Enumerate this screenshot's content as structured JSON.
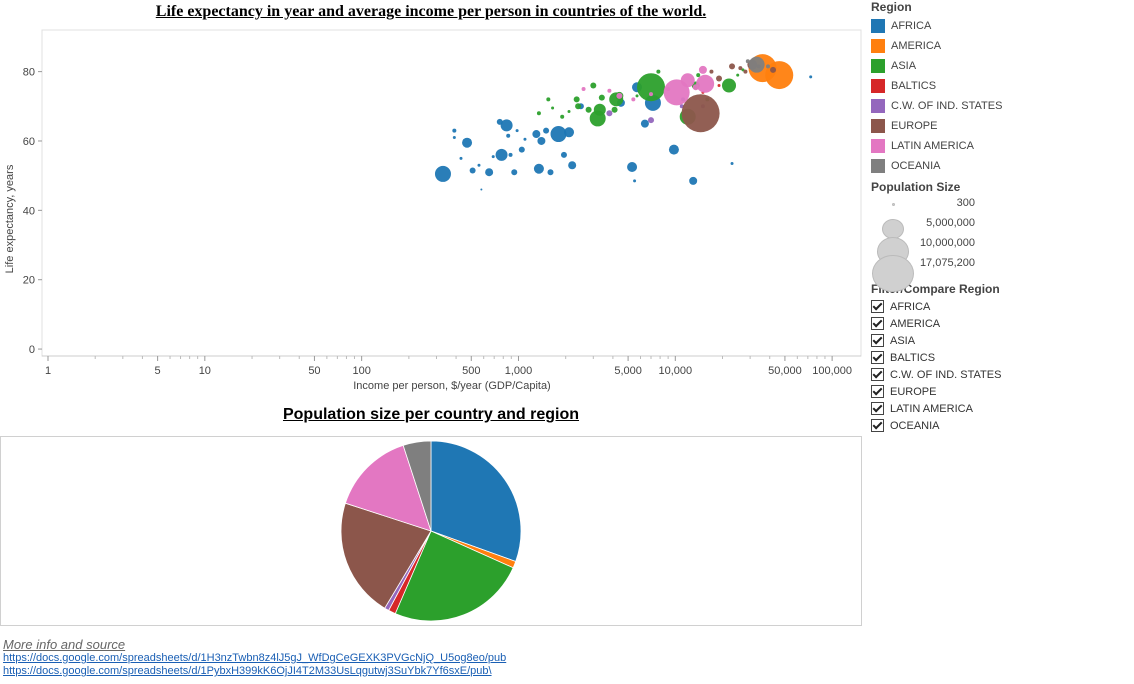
{
  "titles": {
    "scatter": "Life expectancy in year and average income per person in countries of the world.",
    "pie": "Population size per country and region"
  },
  "chart_data": [
    {
      "type": "scatter",
      "title": "Life expectancy in year and average income per person in countries of the world.",
      "xlabel": "Income per person, $/year (GDP/Capita)",
      "ylabel": "Life expectancy, years",
      "xscale": "log",
      "xlim": [
        1,
        130000
      ],
      "ylim": [
        -2,
        92
      ],
      "xticks": [
        1,
        5,
        10,
        50,
        100,
        500,
        1000,
        5000,
        10000,
        50000,
        100000
      ],
      "xtick_labels": [
        "1",
        "5",
        "10",
        "50",
        "100",
        "500",
        "1,000",
        "5,000",
        "10,000",
        "50,000",
        "100,000"
      ],
      "yticks": [
        0,
        20,
        40,
        60,
        80
      ],
      "grid": false,
      "legend_position": "right",
      "series": [
        {
          "name": "AFRICA",
          "color": "#1f77b4",
          "points": [
            [
              330,
              50.5,
              8
            ],
            [
              390,
              63,
              2
            ],
            [
              390,
              61,
              1.5
            ],
            [
              430,
              55,
              1.5
            ],
            [
              470,
              59.5,
              5
            ],
            [
              510,
              51.5,
              3
            ],
            [
              560,
              53,
              1.5
            ],
            [
              580,
              46,
              1
            ],
            [
              650,
              51,
              4
            ],
            [
              690,
              55.5,
              1.5
            ],
            [
              760,
              65.5,
              3
            ],
            [
              780,
              56,
              6
            ],
            [
              840,
              64.5,
              6
            ],
            [
              860,
              61.5,
              2
            ],
            [
              890,
              56,
              2
            ],
            [
              940,
              51,
              3
            ],
            [
              980,
              63,
              1.5
            ],
            [
              1050,
              57.5,
              3
            ],
            [
              1100,
              60.5,
              1.5
            ],
            [
              1300,
              62,
              4
            ],
            [
              1350,
              52,
              5
            ],
            [
              1400,
              60,
              4
            ],
            [
              1500,
              63,
              3
            ],
            [
              1600,
              51,
              3
            ],
            [
              1800,
              62,
              8
            ],
            [
              1950,
              56,
              3
            ],
            [
              2100,
              62.5,
              5
            ],
            [
              2200,
              53,
              4
            ],
            [
              2500,
              70,
              3
            ],
            [
              4500,
              71,
              4
            ],
            [
              5300,
              52.5,
              5
            ],
            [
              5500,
              48.5,
              1.5
            ],
            [
              5700,
              75.5,
              5
            ],
            [
              6400,
              65,
              4
            ],
            [
              7200,
              71,
              8
            ],
            [
              9800,
              57.5,
              5
            ],
            [
              11200,
              72,
              2
            ],
            [
              13000,
              48.5,
              4
            ],
            [
              23000,
              53.5,
              1.5
            ],
            [
              73000,
              78.5,
              1.5
            ]
          ]
        },
        {
          "name": "AMERICA",
          "color": "#ff7f0e",
          "points": [
            [
              36000,
              81,
              14
            ],
            [
              46000,
              79,
              14
            ]
          ]
        },
        {
          "name": "ASIA",
          "color": "#2ca02c",
          "points": [
            [
              1350,
              68,
              2
            ],
            [
              1550,
              72,
              2
            ],
            [
              1650,
              69.5,
              1.5
            ],
            [
              1900,
              67,
              2
            ],
            [
              2100,
              68.5,
              1.5
            ],
            [
              2350,
              72,
              3
            ],
            [
              2400,
              70,
              3
            ],
            [
              2800,
              69,
              3
            ],
            [
              3000,
              76,
              3
            ],
            [
              3200,
              66.5,
              8
            ],
            [
              3300,
              69,
              6
            ],
            [
              3400,
              72.5,
              3
            ],
            [
              4100,
              69,
              3
            ],
            [
              4200,
              72,
              7
            ],
            [
              4400,
              73,
              4
            ],
            [
              5700,
              73,
              1.5
            ],
            [
              7000,
              75.5,
              14
            ],
            [
              7800,
              80,
              2
            ],
            [
              12000,
              67,
              8
            ],
            [
              13500,
              76,
              4
            ],
            [
              14000,
              79,
              2
            ],
            [
              16000,
              72,
              2
            ],
            [
              22000,
              76,
              7
            ],
            [
              25000,
              79,
              1.5
            ],
            [
              27000,
              80.5,
              1.5
            ]
          ]
        },
        {
          "name": "BALTICS",
          "color": "#d62728",
          "points": [
            [
              15000,
              74,
              1.5
            ],
            [
              19000,
              76,
              1.5
            ]
          ]
        },
        {
          "name": "C.W. OF IND. STATES",
          "color": "#9467bd",
          "points": [
            [
              3800,
              68,
              3
            ],
            [
              7000,
              66,
              3
            ],
            [
              11000,
              70,
              2
            ],
            [
              15000,
              70,
              2
            ]
          ]
        },
        {
          "name": "EUROPE",
          "color": "#8c564b",
          "points": [
            [
              14500,
              68,
              19
            ],
            [
              17000,
              80,
              2
            ],
            [
              19000,
              78,
              3
            ],
            [
              23000,
              81.5,
              3
            ],
            [
              26000,
              81,
              2
            ],
            [
              28000,
              80,
              2
            ],
            [
              31000,
              82,
              5
            ],
            [
              34000,
              81.5,
              2
            ],
            [
              42000,
              80.5,
              3
            ]
          ]
        },
        {
          "name": "LATIN AMERICA",
          "color": "#e377c2",
          "points": [
            [
              2600,
              75,
              2
            ],
            [
              3800,
              74.5,
              2
            ],
            [
              4400,
              73,
              3
            ],
            [
              5400,
              72,
              2
            ],
            [
              7000,
              73.5,
              2
            ],
            [
              9000,
              75,
              2
            ],
            [
              10200,
              74,
              13
            ],
            [
              12000,
              77.5,
              7
            ],
            [
              13500,
              75.5,
              3
            ],
            [
              15000,
              80.5,
              4
            ],
            [
              15500,
              76.5,
              9
            ]
          ]
        },
        {
          "name": "OCEANIA",
          "color": "#7f7f7f",
          "points": [
            [
              33000,
              82,
              8
            ],
            [
              29000,
              83,
              2
            ],
            [
              39000,
              81.5,
              2
            ]
          ]
        }
      ]
    },
    {
      "type": "pie",
      "title": "Population size per country and region",
      "slices": [
        {
          "name": "AFRICA",
          "value": 30.5,
          "color": "#1f77b4"
        },
        {
          "name": "AMERICA",
          "value": 1.2,
          "color": "#ff7f0e"
        },
        {
          "name": "ASIA",
          "value": 24.8,
          "color": "#2ca02c"
        },
        {
          "name": "BALTICS",
          "value": 1.3,
          "color": "#d62728"
        },
        {
          "name": "C.W. OF IND. STATES",
          "value": 0.8,
          "color": "#9467bd"
        },
        {
          "name": "EUROPE",
          "value": 21.4,
          "color": "#8c564b"
        },
        {
          "name": "LATIN AMERICA",
          "value": 15.0,
          "color": "#e377c2"
        },
        {
          "name": "OCEANIA",
          "value": 5.0,
          "color": "#7f7f7f"
        }
      ]
    }
  ],
  "legend": {
    "region_title": "Region",
    "regions": [
      {
        "label": "AFRICA",
        "color": "#1f77b4"
      },
      {
        "label": "AMERICA",
        "color": "#ff7f0e"
      },
      {
        "label": "ASIA",
        "color": "#2ca02c"
      },
      {
        "label": "BALTICS",
        "color": "#d62728"
      },
      {
        "label": "C.W. OF IND. STATES",
        "color": "#9467bd"
      },
      {
        "label": "EUROPE",
        "color": "#8c564b"
      },
      {
        "label": "LATIN AMERICA",
        "color": "#e377c2"
      },
      {
        "label": "OCEANIA",
        "color": "#7f7f7f"
      }
    ],
    "size_title": "Population Size",
    "sizes": [
      {
        "label": "300",
        "value": 300
      },
      {
        "label": "5,000,000",
        "value": 5000000
      },
      {
        "label": "10,000,000",
        "value": 10000000
      },
      {
        "label": "17,075,200",
        "value": 17075200
      }
    ],
    "filter_title": "Filter/Compare Region",
    "filters": [
      {
        "label": "AFRICA",
        "checked": true
      },
      {
        "label": "AMERICA",
        "checked": true
      },
      {
        "label": "ASIA",
        "checked": true
      },
      {
        "label": "BALTICS",
        "checked": true
      },
      {
        "label": "C.W. OF IND. STATES",
        "checked": true
      },
      {
        "label": "EUROPE",
        "checked": true
      },
      {
        "label": "LATIN AMERICA",
        "checked": true
      },
      {
        "label": "OCEANIA",
        "checked": true
      }
    ]
  },
  "footer": {
    "more_info": "More info and source",
    "link1": "https://docs.google.com/spreadsheets/d/1H3nzTwbn8z4lJ5gJ_WfDgCeGEXK3PVGcNjQ_U5og8eo/pub",
    "link2": "https://docs.google.com/spreadsheets/d/1PybxH399kK6OjJI4T2M33UsLqgutwj3SuYbk7Yf6sxE/pub\\"
  }
}
